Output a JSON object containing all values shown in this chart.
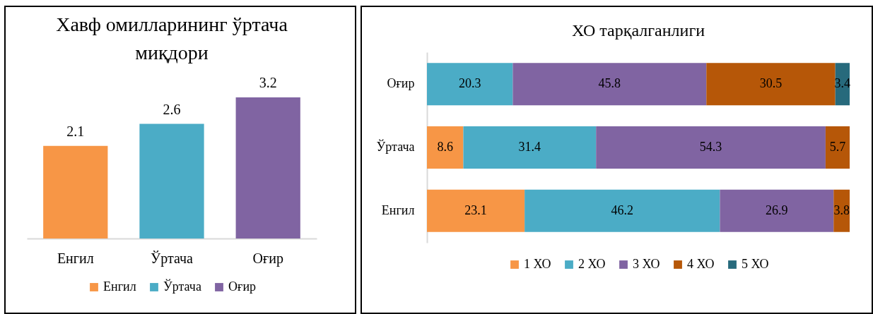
{
  "chart_data": [
    {
      "type": "bar",
      "title": "Хавф омилларининг ўртача миқдори",
      "categories": [
        "Енгил",
        "Ўртача",
        "Оғир"
      ],
      "series": [
        {
          "name": "Енгил",
          "color": "#f79646",
          "values": [
            2.1,
            null,
            null
          ]
        },
        {
          "name": "Ўртача",
          "color": "#4bacc6",
          "values": [
            null,
            2.6,
            null
          ]
        },
        {
          "name": "Оғир",
          "color": "#8064a2",
          "values": [
            null,
            null,
            3.2
          ]
        }
      ],
      "data_labels": true,
      "legend": "bottom"
    },
    {
      "type": "bar",
      "title": "ХО тарқалганлиги",
      "orientation": "horizontal",
      "stacked": true,
      "categories": [
        "Оғир",
        "Ўртача",
        "Енгил"
      ],
      "series": [
        {
          "name": "1 ХО",
          "color": "#f79646",
          "values": [
            null,
            8.6,
            23.1
          ]
        },
        {
          "name": "2 ХО",
          "color": "#4bacc6",
          "values": [
            20.3,
            31.4,
            46.2
          ]
        },
        {
          "name": "3 ХО",
          "color": "#8064a2",
          "values": [
            45.8,
            54.3,
            26.9
          ]
        },
        {
          "name": "4 ХО",
          "color": "#b65708",
          "values": [
            30.5,
            5.7,
            3.8
          ]
        },
        {
          "name": "5 ХО",
          "color": "#276a7c",
          "values": [
            3.4,
            null,
            null
          ]
        }
      ],
      "data_labels": true,
      "legend": "bottom"
    }
  ]
}
